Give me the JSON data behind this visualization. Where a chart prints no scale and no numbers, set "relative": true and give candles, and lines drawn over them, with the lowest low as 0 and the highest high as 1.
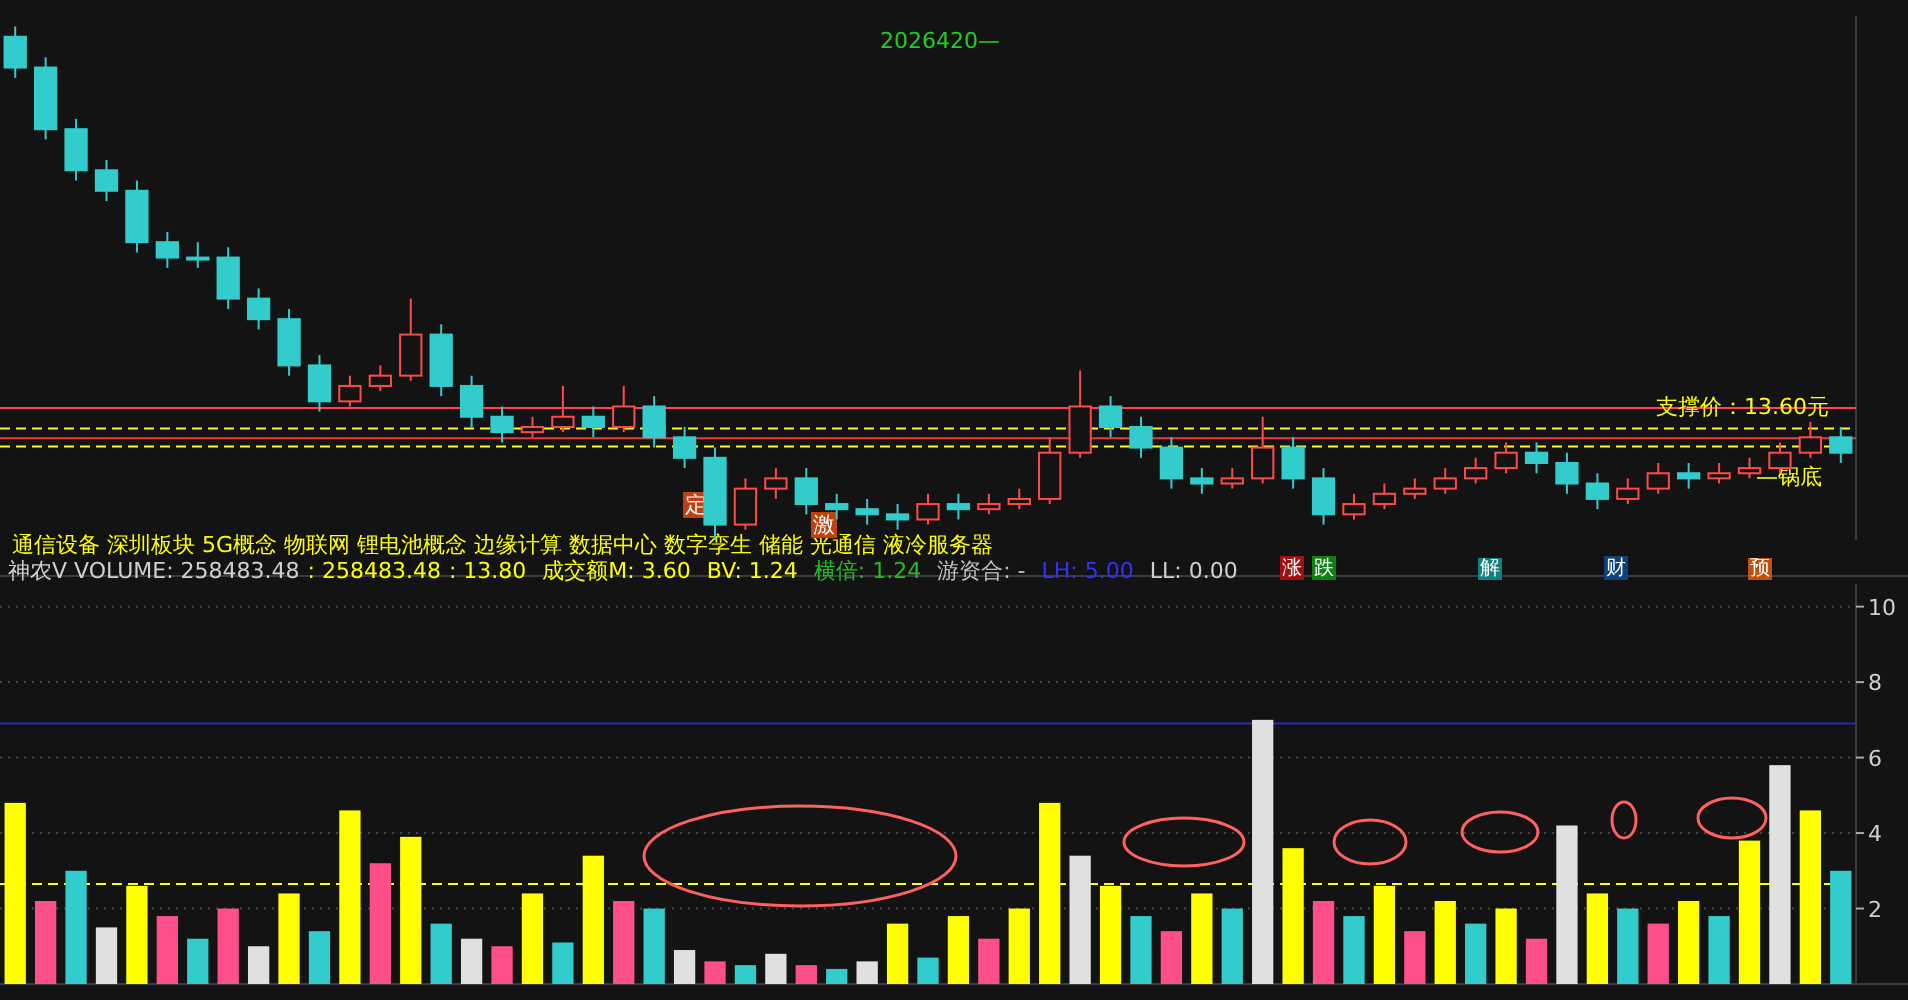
{
  "chart_data": [
    {
      "type": "candlestick",
      "relative": true,
      "categories": [
        null,
        null,
        null,
        null,
        null,
        null,
        null,
        null,
        null,
        null,
        null,
        null,
        null,
        null,
        null,
        null,
        null,
        null,
        null,
        null,
        null,
        null,
        null,
        null,
        null,
        null,
        null,
        null,
        null,
        null,
        null,
        null,
        null,
        null,
        null,
        null,
        null,
        null,
        null,
        null,
        null,
        null,
        null,
        null,
        null,
        null,
        null,
        null,
        null,
        null,
        null,
        null,
        null,
        null,
        null,
        null,
        null,
        null,
        null,
        null,
        null
      ],
      "ohlc": [
        [
          0.98,
          1.0,
          0.9,
          0.92
        ],
        [
          0.92,
          0.94,
          0.78,
          0.8
        ],
        [
          0.8,
          0.82,
          0.7,
          0.72
        ],
        [
          0.72,
          0.74,
          0.66,
          0.68
        ],
        [
          0.68,
          0.7,
          0.56,
          0.58
        ],
        [
          0.58,
          0.6,
          0.53,
          0.55
        ],
        [
          0.55,
          0.58,
          0.53,
          0.55
        ],
        [
          0.55,
          0.57,
          0.45,
          0.47
        ],
        [
          0.47,
          0.49,
          0.41,
          0.43
        ],
        [
          0.43,
          0.45,
          0.32,
          0.34
        ],
        [
          0.34,
          0.36,
          0.25,
          0.27
        ],
        [
          0.27,
          0.32,
          0.26,
          0.3
        ],
        [
          0.3,
          0.34,
          0.29,
          0.32
        ],
        [
          0.32,
          0.47,
          0.31,
          0.4
        ],
        [
          0.4,
          0.42,
          0.28,
          0.3
        ],
        [
          0.3,
          0.32,
          0.22,
          0.24
        ],
        [
          0.24,
          0.26,
          0.19,
          0.21
        ],
        [
          0.21,
          0.24,
          0.2,
          0.22
        ],
        [
          0.22,
          0.3,
          0.21,
          0.24
        ],
        [
          0.24,
          0.26,
          0.2,
          0.22
        ],
        [
          0.22,
          0.3,
          0.21,
          0.26
        ],
        [
          0.26,
          0.28,
          0.18,
          0.2
        ],
        [
          0.2,
          0.22,
          0.14,
          0.16
        ],
        [
          0.16,
          0.18,
          0.0,
          0.03
        ],
        [
          0.03,
          0.12,
          0.02,
          0.1
        ],
        [
          0.1,
          0.14,
          0.08,
          0.12
        ],
        [
          0.12,
          0.14,
          0.05,
          0.07
        ],
        [
          0.07,
          0.09,
          0.04,
          0.06
        ],
        [
          0.06,
          0.08,
          0.03,
          0.05
        ],
        [
          0.05,
          0.07,
          0.02,
          0.04
        ],
        [
          0.04,
          0.09,
          0.03,
          0.07
        ],
        [
          0.07,
          0.09,
          0.04,
          0.06
        ],
        [
          0.06,
          0.09,
          0.05,
          0.07
        ],
        [
          0.07,
          0.1,
          0.06,
          0.08
        ],
        [
          0.08,
          0.2,
          0.07,
          0.17
        ],
        [
          0.17,
          0.33,
          0.16,
          0.26
        ],
        [
          0.26,
          0.28,
          0.2,
          0.22
        ],
        [
          0.22,
          0.24,
          0.16,
          0.18
        ],
        [
          0.18,
          0.2,
          0.1,
          0.12
        ],
        [
          0.12,
          0.14,
          0.09,
          0.11
        ],
        [
          0.11,
          0.14,
          0.1,
          0.12
        ],
        [
          0.12,
          0.24,
          0.11,
          0.18
        ],
        [
          0.18,
          0.2,
          0.1,
          0.12
        ],
        [
          0.12,
          0.14,
          0.03,
          0.05
        ],
        [
          0.05,
          0.09,
          0.04,
          0.07
        ],
        [
          0.07,
          0.11,
          0.06,
          0.09
        ],
        [
          0.09,
          0.12,
          0.08,
          0.1
        ],
        [
          0.1,
          0.14,
          0.09,
          0.12
        ],
        [
          0.12,
          0.16,
          0.11,
          0.14
        ],
        [
          0.14,
          0.19,
          0.13,
          0.17
        ],
        [
          0.17,
          0.19,
          0.13,
          0.15
        ],
        [
          0.15,
          0.17,
          0.09,
          0.11
        ],
        [
          0.11,
          0.13,
          0.06,
          0.08
        ],
        [
          0.08,
          0.12,
          0.07,
          0.1
        ],
        [
          0.1,
          0.15,
          0.09,
          0.13
        ],
        [
          0.13,
          0.15,
          0.1,
          0.12
        ],
        [
          0.12,
          0.15,
          0.11,
          0.13
        ],
        [
          0.13,
          0.16,
          0.12,
          0.14
        ],
        [
          0.14,
          0.19,
          0.13,
          0.17
        ],
        [
          0.17,
          0.23,
          0.16,
          0.2
        ],
        [
          0.2,
          0.22,
          0.15,
          0.17
        ]
      ],
      "ref_lines": [
        {
          "axis": "y",
          "value": 0.257,
          "color": "#ff4060",
          "line_style": "solid"
        },
        {
          "axis": "y",
          "value": 0.217,
          "color": "#ffff00",
          "line_style": "dashed"
        },
        {
          "axis": "y",
          "value": 0.198,
          "color": "#ff3030",
          "line_style": "solid"
        },
        {
          "axis": "y",
          "value": 0.182,
          "color": "#ffff00",
          "line_style": "dashed"
        }
      ],
      "annotations": [
        "2026420—",
        "通信设备 深圳板块 5G概念 物联网 锂电池概念 边缘计算 数据中心 数字孪生 储能 光通信 液冷服务器",
        "支撑价：13.60元",
        "—锅底",
        "定",
        "激",
        "涨",
        "跌",
        "解",
        "财",
        "预"
      ]
    },
    {
      "type": "bar",
      "categories": [
        null,
        null,
        null,
        null,
        null,
        null,
        null,
        null,
        null,
        null,
        null,
        null,
        null,
        null,
        null,
        null,
        null,
        null,
        null,
        null,
        null,
        null,
        null,
        null,
        null,
        null,
        null,
        null,
        null,
        null,
        null,
        null,
        null,
        null,
        null,
        null,
        null,
        null,
        null,
        null,
        null,
        null,
        null,
        null,
        null,
        null,
        null,
        null,
        null,
        null,
        null,
        null,
        null,
        null,
        null,
        null,
        null,
        null,
        null,
        null,
        null
      ],
      "values": [
        4.8,
        2.2,
        3.0,
        1.5,
        2.6,
        1.8,
        1.2,
        2.0,
        1.0,
        2.4,
        1.4,
        4.6,
        3.2,
        3.9,
        1.6,
        1.2,
        1.0,
        2.4,
        1.1,
        3.4,
        2.2,
        2.0,
        0.9,
        0.6,
        0.5,
        0.8,
        0.5,
        0.4,
        0.6,
        1.6,
        0.7,
        1.8,
        1.2,
        2.0,
        4.8,
        3.4,
        2.6,
        1.8,
        1.4,
        2.4,
        2.0,
        7.0,
        3.6,
        2.2,
        1.8,
        2.6,
        1.4,
        2.2,
        1.6,
        2.0,
        1.2,
        4.2,
        2.4,
        2.0,
        1.6,
        2.2,
        1.8,
        3.8,
        5.8,
        4.6,
        3.0
      ],
      "colors": [
        "#ffff00",
        "#ff4f8b",
        "#33cccc",
        "#e0e0e0",
        "#ffff00",
        "#ff4f8b",
        "#33cccc",
        "#ff4f8b",
        "#e0e0e0",
        "#ffff00",
        "#33cccc",
        "#ffff00",
        "#ff4f8b",
        "#ffff00",
        "#33cccc",
        "#e0e0e0",
        "#ff4f8b",
        "#ffff00",
        "#33cccc",
        "#ffff00",
        "#ff4f8b",
        "#33cccc",
        "#e0e0e0",
        "#ff4f8b",
        "#33cccc",
        "#e0e0e0",
        "#ff4f8b",
        "#33cccc",
        "#e0e0e0",
        "#ffff00",
        "#33cccc",
        "#ffff00",
        "#ff4f8b",
        "#ffff00",
        "#ffff00",
        "#e0e0e0",
        "#ffff00",
        "#33cccc",
        "#ff4f8b",
        "#ffff00",
        "#33cccc",
        "#e0e0e0",
        "#ffff00",
        "#ff4f8b",
        "#33cccc",
        "#ffff00",
        "#ff4f8b",
        "#ffff00",
        "#33cccc",
        "#ffff00",
        "#ff4f8b",
        "#e0e0e0",
        "#ffff00",
        "#33cccc",
        "#ff4f8b",
        "#ffff00",
        "#33cccc",
        "#ffff00",
        "#e0e0e0",
        "#ffff00",
        "#33cccc"
      ],
      "ylim": [
        0,
        10.6
      ],
      "yticks": [
        2,
        4,
        6,
        8,
        10
      ],
      "grid": "y",
      "tick_labels": "y",
      "ref_lines": [
        {
          "axis": "y",
          "value": 6.9,
          "color": "#2828c8",
          "line_style": "solid"
        },
        {
          "axis": "y",
          "value": 2.65,
          "color": "#ffff00",
          "line_style": "dashed"
        }
      ],
      "annotations": [
        "神农V VOLUME: 258483.48",
        ": 258483.48",
        ": 13.80",
        "成交额M: 3.60",
        "BV: 1.24",
        "横倍: 1.24",
        "游资合: -",
        "LH: 5.00",
        "LL: 0.00"
      ]
    }
  ]
}
